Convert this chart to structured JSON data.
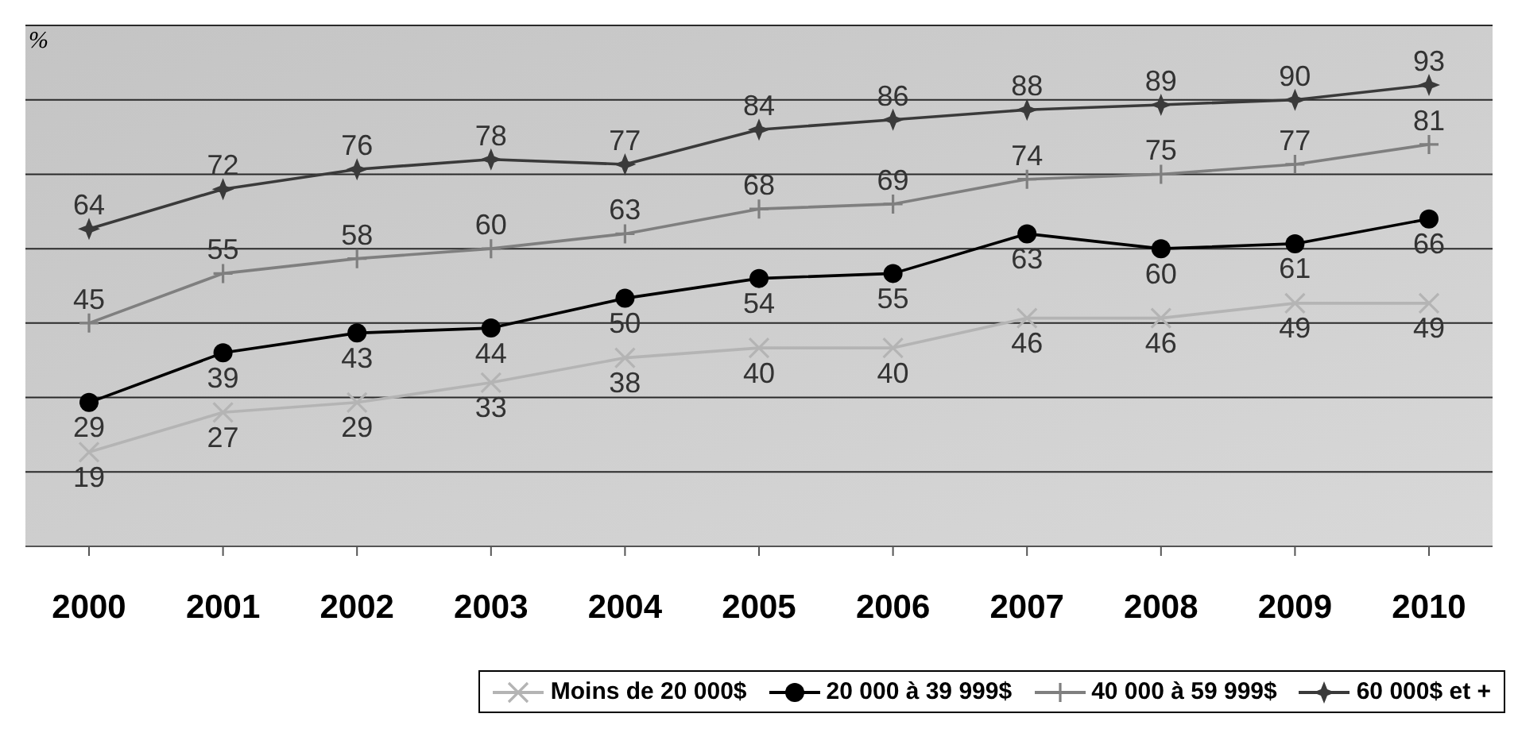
{
  "chart_data": {
    "type": "line",
    "ylabel": "%",
    "categories": [
      "2000",
      "2001",
      "2002",
      "2003",
      "2004",
      "2005",
      "2006",
      "2007",
      "2008",
      "2009",
      "2010"
    ],
    "series": [
      {
        "name": "Moins de 20 000$",
        "color": "#b4b4b4",
        "marker": "cross",
        "values": [
          19,
          27,
          29,
          33,
          38,
          40,
          40,
          46,
          46,
          49,
          49
        ]
      },
      {
        "name": "20 000 à 39 999$",
        "color": "#000000",
        "marker": "circle",
        "values": [
          29,
          39,
          43,
          44,
          50,
          54,
          55,
          63,
          60,
          61,
          66
        ]
      },
      {
        "name": "40 000 à 59 999$",
        "color": "#7f7f7f",
        "marker": "plus",
        "values": [
          45,
          55,
          58,
          60,
          63,
          68,
          69,
          74,
          75,
          77,
          81
        ]
      },
      {
        "name": "60 000$ et +",
        "color": "#3a3a3a",
        "marker": "star",
        "values": [
          64,
          72,
          76,
          78,
          77,
          84,
          86,
          88,
          89,
          90,
          93
        ]
      }
    ],
    "ylim": [
      0,
      105
    ],
    "tick_labels": "x",
    "grid": "y",
    "data_labels": true,
    "legend": "bottom",
    "line_style": "solid"
  }
}
